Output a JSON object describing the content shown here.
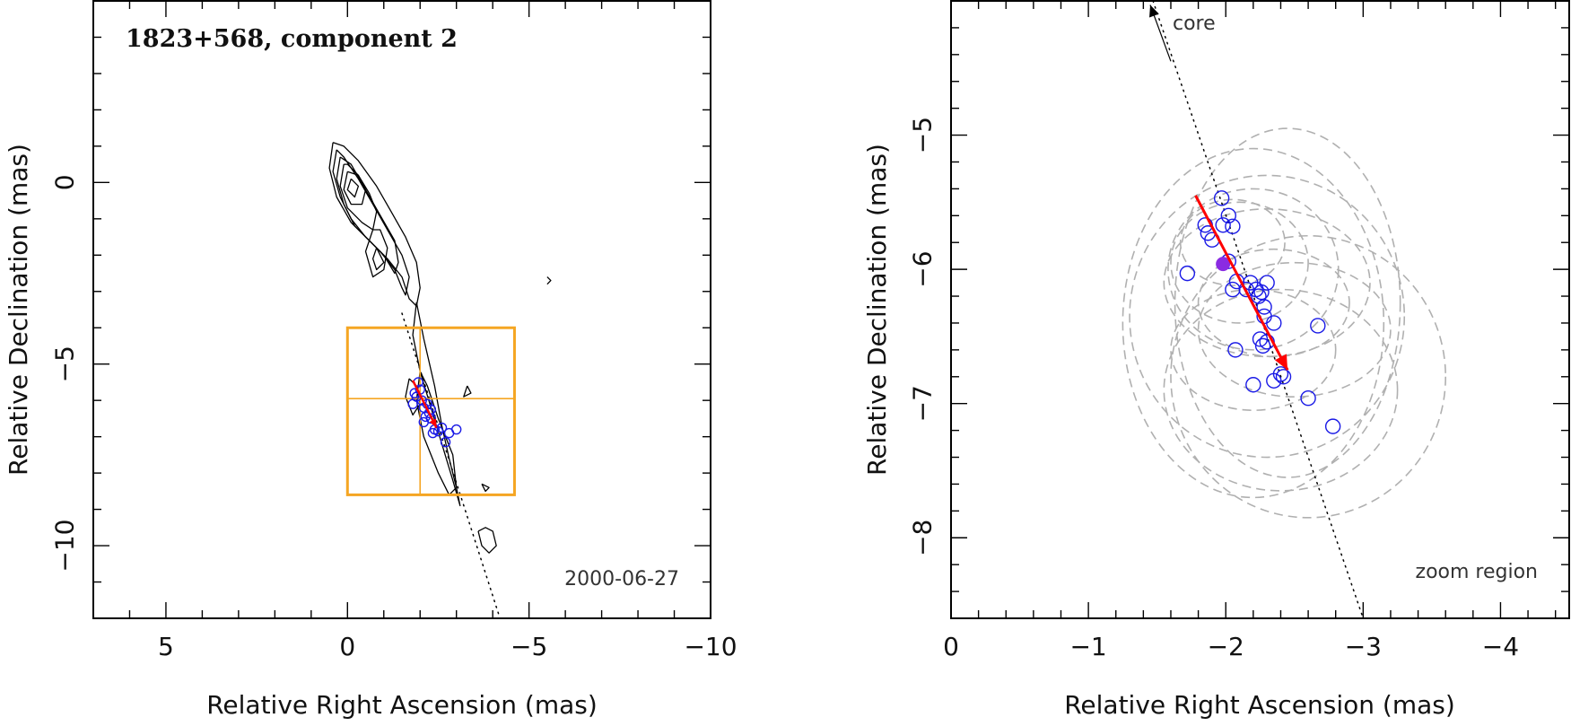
{
  "colors": {
    "contour": "#000000",
    "box": "#f5a623",
    "circle": "#1a1ae6",
    "arrow": "#ff0000",
    "filled_point": "#8a2be2",
    "ellipse": "#b0b0b0"
  },
  "chart_data": [
    {
      "type": "scatter",
      "title": "1823+568, component 2",
      "epoch_label": "2000-06-27",
      "xlabel": "Relative Right Ascension (mas)",
      "ylabel": "Relative Declination (mas)",
      "xlim": [
        7,
        -10
      ],
      "ylim": [
        -12,
        5
      ],
      "xticks": [
        5,
        0,
        -5,
        -10
      ],
      "xtick_labels": [
        "5",
        "0",
        "−5",
        "−10"
      ],
      "yticks": [
        0,
        -5,
        -10
      ],
      "ytick_labels": [
        "0",
        "−5",
        "−10"
      ],
      "contours": [
        {
          "x": [
            0.4,
            0.5,
            0.3,
            -0.1,
            -0.6,
            -1.1,
            -1.5,
            -1.7,
            -1.9,
            -2.0,
            -1.9,
            -1.6,
            -1.2,
            -0.8,
            -0.3,
            0.1,
            0.4
          ],
          "y": [
            1.1,
            0.4,
            -0.4,
            -1.1,
            -1.6,
            -2.1,
            -2.6,
            -3.2,
            -3.4,
            -2.9,
            -2.2,
            -1.5,
            -0.8,
            -0.1,
            0.6,
            1.0,
            1.1
          ]
        },
        {
          "x": [
            0.3,
            0.4,
            0.2,
            -0.1,
            -0.5,
            -0.9,
            -1.3,
            -1.5,
            -1.6,
            -1.7,
            -1.5,
            -1.1,
            -0.7,
            -0.3,
            0.1,
            0.3
          ],
          "y": [
            0.9,
            0.3,
            -0.4,
            -1.0,
            -1.5,
            -1.9,
            -2.4,
            -2.9,
            -3.1,
            -2.6,
            -2.0,
            -1.3,
            -0.6,
            0.1,
            0.7,
            0.9
          ]
        },
        {
          "x": [
            0.2,
            0.3,
            0.1,
            -0.2,
            -0.6,
            -1.0,
            -1.3,
            -1.4,
            -1.3,
            -0.9,
            -0.5,
            -0.1,
            0.2
          ],
          "y": [
            0.7,
            0.1,
            -0.6,
            -1.2,
            -1.6,
            -2.0,
            -2.5,
            -2.2,
            -1.6,
            -0.9,
            -0.2,
            0.5,
            0.7
          ]
        },
        {
          "x": [
            0.1,
            0.2,
            0.0,
            -0.4,
            -0.7,
            -0.8,
            -0.6,
            -0.3,
            0.0,
            0.1
          ],
          "y": [
            0.5,
            -0.1,
            -0.7,
            -1.1,
            -1.3,
            -0.8,
            -0.3,
            0.2,
            0.5,
            0.5
          ]
        },
        {
          "x": [
            0.0,
            0.1,
            -0.1,
            -0.4,
            -0.5,
            -0.3,
            0.0
          ],
          "y": [
            0.3,
            -0.2,
            -0.6,
            -0.6,
            -0.2,
            0.2,
            0.3
          ]
        },
        {
          "x": [
            -0.1,
            0.0,
            -0.2,
            -0.3,
            -0.1
          ],
          "y": [
            0.1,
            -0.2,
            -0.4,
            -0.1,
            0.1
          ]
        },
        {
          "x": [
            -0.7,
            -0.5,
            -0.7,
            -1.0,
            -1.1,
            -0.9,
            -0.7
          ],
          "y": [
            -1.3,
            -1.9,
            -2.6,
            -2.4,
            -1.8,
            -1.3,
            -1.3
          ]
        },
        {
          "x": [
            -0.8,
            -0.7,
            -0.8,
            -1.0,
            -0.8
          ],
          "y": [
            -1.8,
            -2.1,
            -2.4,
            -2.2,
            -1.8
          ]
        },
        {
          "x": [
            -1.9,
            -1.8,
            -2.0,
            -2.3,
            -2.6,
            -2.9,
            -3.1,
            -3.0,
            -2.8,
            -2.6,
            -2.4,
            -2.1,
            -1.9
          ],
          "y": [
            -3.3,
            -4.2,
            -5.2,
            -6.2,
            -7.2,
            -8.2,
            -8.9,
            -8.4,
            -7.6,
            -6.7,
            -5.6,
            -4.3,
            -3.3
          ]
        },
        {
          "x": [
            -2.0,
            -1.9,
            -2.1,
            -2.5,
            -2.8,
            -3.0,
            -2.9,
            -2.5,
            -2.2,
            -2.0
          ],
          "y": [
            -5.2,
            -6.0,
            -7.0,
            -8.0,
            -8.6,
            -8.4,
            -7.5,
            -6.5,
            -5.6,
            -5.2
          ]
        },
        {
          "x": [
            -1.7,
            -1.6,
            -1.8,
            -2.0,
            -1.9,
            -1.7
          ],
          "y": [
            -5.4,
            -5.9,
            -6.4,
            -6.1,
            -5.6,
            -5.4
          ]
        },
        {
          "x": [
            -3.6,
            -3.7,
            -3.9,
            -4.1,
            -4.0,
            -3.8,
            -3.6
          ],
          "y": [
            -9.6,
            -10.0,
            -10.2,
            -10.0,
            -9.6,
            -9.5,
            -9.6
          ]
        },
        {
          "x": [
            -3.7,
            -3.8,
            -3.9,
            -3.7
          ],
          "y": [
            -8.3,
            -8.5,
            -8.4,
            -8.3
          ]
        },
        {
          "x": [
            -3.3,
            -3.4,
            -3.2,
            -3.3
          ],
          "y": [
            -5.6,
            -5.8,
            -5.9,
            -5.6
          ]
        },
        {
          "x": [
            -5.5,
            -5.6,
            -5.5
          ],
          "y": [
            -2.6,
            -2.7,
            -2.8
          ]
        }
      ],
      "jet_axis": {
        "x": [
          -1.5,
          -4.2
        ],
        "y": [
          -3.6,
          -12.0
        ]
      },
      "zoom_box": {
        "x": [
          0,
          -4.6
        ],
        "y": [
          -4.0,
          -8.6
        ],
        "center": [
          -2.0,
          -5.95
        ]
      },
      "components": {
        "x": [
          -1.95,
          -1.85,
          -2.0,
          -2.05,
          -1.8,
          -2.1,
          -2.2,
          -2.3,
          -2.25,
          -2.3,
          -2.1,
          -2.4,
          -2.35,
          -2.5,
          -2.6,
          -2.8,
          -3.0,
          -2.7,
          -1.9,
          -2.15
        ],
        "y": [
          -5.5,
          -5.8,
          -5.7,
          -6.0,
          -6.1,
          -6.2,
          -6.1,
          -6.25,
          -6.35,
          -6.5,
          -6.6,
          -6.8,
          -6.9,
          -6.85,
          -6.75,
          -6.9,
          -6.8,
          -7.15,
          -5.9,
          -6.45
        ]
      },
      "motion_arrow": {
        "x": [
          -1.8,
          -2.45
        ],
        "y": [
          -5.45,
          -6.75
        ]
      }
    },
    {
      "type": "scatter",
      "title": "zoom region",
      "core_label": "core",
      "xlabel": "Relative Right Ascension (mas)",
      "ylabel": "Relative Declination (mas)",
      "xlim": [
        0,
        -4.5
      ],
      "ylim": [
        -8.6,
        -4.0
      ],
      "xticks": [
        0,
        -1,
        -2,
        -3,
        -4
      ],
      "xtick_labels": [
        "0",
        "−1",
        "−2",
        "−3",
        "−4"
      ],
      "yticks": [
        -5,
        -6,
        -7,
        -8
      ],
      "ytick_labels": [
        "−5",
        "−6",
        "−7",
        "−8"
      ],
      "jet_axis": {
        "x": [
          -1.47,
          -3.0
        ],
        "y": [
          -4.0,
          -8.6
        ]
      },
      "core_arrow": {
        "x": [
          -1.6,
          -1.45
        ],
        "y": [
          -4.45,
          -4.03
        ]
      },
      "components": {
        "x": [
          -1.97,
          -1.85,
          -1.87,
          -1.9,
          -1.98,
          -2.02,
          -2.05,
          -2.02,
          -1.72,
          -2.08,
          -2.05,
          -2.15,
          -2.18,
          -2.22,
          -2.24,
          -2.26,
          -2.28,
          -2.28,
          -2.3,
          -2.35,
          -2.25,
          -2.27,
          -2.3,
          -2.07,
          -2.67,
          -2.4,
          -2.42,
          -2.35,
          -2.2,
          -2.6,
          -2.78
        ],
        "y": [
          -5.47,
          -5.67,
          -5.73,
          -5.78,
          -5.67,
          -5.6,
          -5.68,
          -5.94,
          -6.03,
          -6.09,
          -6.15,
          -6.15,
          -6.1,
          -6.15,
          -6.2,
          -6.17,
          -6.28,
          -6.35,
          -6.1,
          -6.4,
          -6.52,
          -6.57,
          -6.54,
          -6.6,
          -6.42,
          -6.78,
          -6.8,
          -6.83,
          -6.86,
          -6.96,
          -7.17
        ]
      },
      "mean_position": {
        "x": -1.98,
        "y": -5.96
      },
      "motion_arrow": {
        "x": [
          -1.78,
          -2.45
        ],
        "y": [
          -5.45,
          -6.75
        ]
      },
      "error_ellipses": [
        {
          "cx": -2.45,
          "cy": -6.25,
          "rx": 0.82,
          "ry": 1.3
        },
        {
          "cx": -2.2,
          "cy": -6.4,
          "rx": 0.95,
          "ry": 1.3
        },
        {
          "cx": -2.3,
          "cy": -6.35,
          "rx": 1.0,
          "ry": 1.05
        },
        {
          "cx": -2.6,
          "cy": -6.8,
          "rx": 1.0,
          "ry": 1.05
        },
        {
          "cx": -2.4,
          "cy": -6.9,
          "rx": 0.85,
          "ry": 0.75
        },
        {
          "cx": -2.2,
          "cy": -6.0,
          "rx": 0.62,
          "ry": 0.6
        },
        {
          "cx": -2.3,
          "cy": -6.1,
          "rx": 0.75,
          "ry": 0.55
        },
        {
          "cx": -2.5,
          "cy": -6.45,
          "rx": 0.7,
          "ry": 0.5
        },
        {
          "cx": -2.1,
          "cy": -5.95,
          "rx": 0.5,
          "ry": 0.45
        },
        {
          "cx": -2.35,
          "cy": -6.25,
          "rx": 0.55,
          "ry": 0.4
        },
        {
          "cx": -2.2,
          "cy": -6.6,
          "rx": 0.6,
          "ry": 0.45
        },
        {
          "cx": -2.05,
          "cy": -5.8,
          "rx": 0.38,
          "ry": 0.32
        }
      ]
    }
  ]
}
